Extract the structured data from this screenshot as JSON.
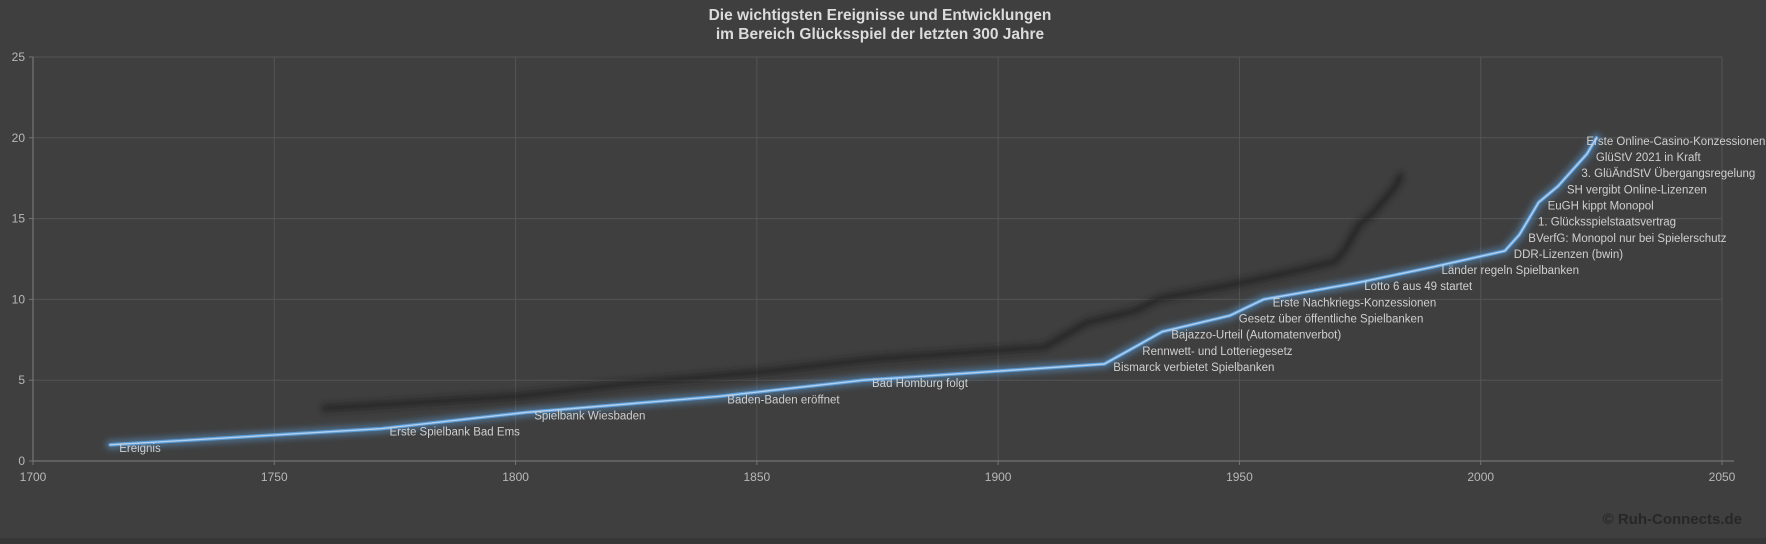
{
  "title": {
    "line1": "Die wichtigsten Ereignisse und Entwicklungen",
    "line2": "im Bereich Glücksspiel der letzten 300 Jahre"
  },
  "footer": {
    "copyright": "© Ruh-Connects.de"
  },
  "colors": {
    "background": "#3f3f3f",
    "grid": "#545454",
    "axis": "#757575",
    "tick_label": "#b8b8b8",
    "data_label": "#cfcfcf",
    "line": "#5b9bd5",
    "line_core": "#b7d3ee",
    "line_glow": "#5b9bd5",
    "shadow": "#1c1c1c",
    "title_text": "#dcdcdc",
    "copyright_text": "#272727"
  },
  "chart_data": {
    "type": "line",
    "title": "Die wichtigsten Ereignisse und Entwicklungen im Bereich Glücksspiel der letzten 300 Jahre",
    "xlabel": "",
    "ylabel": "",
    "xlim": [
      1700,
      2050
    ],
    "ylim": [
      0,
      25
    ],
    "x_ticks": [
      1700,
      1750,
      1800,
      1850,
      1900,
      1950,
      2000,
      2050
    ],
    "y_ticks": [
      0,
      5,
      10,
      15,
      20,
      25
    ],
    "grid": true,
    "legend_position": "none",
    "series": [
      {
        "name": "Ereignis",
        "points": [
          {
            "year": 1716,
            "value": 1,
            "label": "Ereignis"
          },
          {
            "year": 1772,
            "value": 2,
            "label": "Erste Spielbank Bad Ems"
          },
          {
            "year": 1802,
            "value": 3,
            "label": "Spielbank Wiesbaden"
          },
          {
            "year": 1842,
            "value": 4,
            "label": "Baden-Baden eröffnet"
          },
          {
            "year": 1872,
            "value": 5,
            "label": "Bad Homburg folgt"
          },
          {
            "year": 1922,
            "value": 6,
            "label": "Bismarck verbietet Spielbanken"
          },
          {
            "year": 1928,
            "value": 7,
            "label": "Rennwett- und Lotteriegesetz"
          },
          {
            "year": 1934,
            "value": 8,
            "label": "Bajazzo-Urteil (Automatenverbot)"
          },
          {
            "year": 1948,
            "value": 9,
            "label": "Gesetz über öffentliche Spielbanken"
          },
          {
            "year": 1955,
            "value": 10,
            "label": "Erste Nachkriegs-Konzessionen"
          },
          {
            "year": 1974,
            "value": 11,
            "label": "Lotto 6 aus 49 startet"
          },
          {
            "year": 1990,
            "value": 12,
            "label": "Länder regeln Spielbanken"
          },
          {
            "year": 2005,
            "value": 13,
            "label": "DDR-Lizenzen (bwin)"
          },
          {
            "year": 2008,
            "value": 14,
            "label": "BVerfG: Monopol nur bei Spielerschutz"
          },
          {
            "year": 2010,
            "value": 15,
            "label": "1. Glücksspielstaatsvertrag"
          },
          {
            "year": 2012,
            "value": 16,
            "label": "EuGH kippt Monopol"
          },
          {
            "year": 2016,
            "value": 17,
            "label": "SH vergibt Online-Lizenzen"
          },
          {
            "year": 2019,
            "value": 18,
            "label": "3. GlüÄndStV Übergangsregelung"
          },
          {
            "year": 2022,
            "value": 19,
            "label": "GlüStV 2021 in Kraft"
          },
          {
            "year": 2024,
            "value": 20,
            "label": "Erste Online-Casino-Konzessionen"
          }
        ]
      }
    ]
  }
}
